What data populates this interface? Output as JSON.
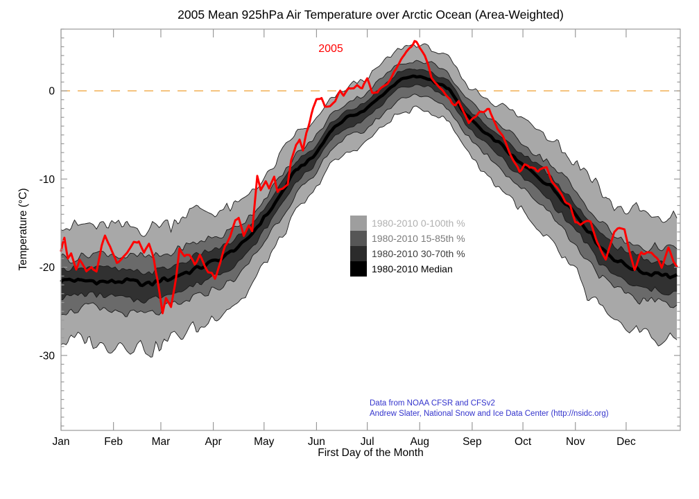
{
  "title": "2005 Mean 925hPa Air Temperature over Arctic Ocean (Area-Weighted)",
  "year_label": "2005",
  "credits": [
    "Data from NOAA CFSR and CFSv2",
    "Andrew Slater, National Snow and Ice Data Center (http://nsidc.org)"
  ],
  "legend": {
    "items": [
      {
        "label": "1980-2010 0-100th %",
        "swatch": "#9e9e9e",
        "text_color": "#b0b0b0"
      },
      {
        "label": "1980-2010 15-85th %",
        "swatch": "#565656",
        "text_color": "#7a7a7a"
      },
      {
        "label": "1980-2010 30-70th %",
        "swatch": "#2b2b2b",
        "text_color": "#3c3c3c"
      },
      {
        "label": "1980-2010 Median",
        "swatch": "#000000",
        "text_color": "#000000"
      }
    ]
  },
  "colors": {
    "line_2005": "#ff0000",
    "zero_line": "#f0a843",
    "band_outer": "#a8a8a8",
    "band_mid": "#6a6a6a",
    "band_inner": "#313131",
    "band_edge": "#1a1a1a",
    "median": "#000000",
    "frame": "#999999",
    "credit_text": "#3333cc",
    "label_text": "#000000"
  },
  "chart_data": {
    "type": "line",
    "title": "2005 Mean 925hPa Air Temperature over Arctic Ocean (Area-Weighted)",
    "xlabel": "First Day of the Month",
    "ylabel": "Temperature (°C)",
    "x_unit": "day_of_year",
    "ylim": [
      -38.5,
      7.0
    ],
    "y_ticks_major": [
      0,
      -10,
      -20,
      -30
    ],
    "y_tick_labels": [
      "0",
      "-10",
      "-20",
      "-30"
    ],
    "y_minor_step": 1,
    "grid": false,
    "zero_line": 0,
    "month_labels": [
      "Jan",
      "Feb",
      "Mar",
      "Apr",
      "May",
      "Jun",
      "Jul",
      "Aug",
      "Sep",
      "Oct",
      "Nov",
      "Dec"
    ],
    "month_start_days": [
      1,
      32,
      60,
      91,
      121,
      152,
      182,
      213,
      244,
      274,
      305,
      335
    ],
    "band_days": [
      1,
      10,
      20,
      30,
      40,
      50,
      60,
      70,
      80,
      90,
      100,
      110,
      120,
      130,
      140,
      150,
      160,
      170,
      180,
      190,
      200,
      210,
      220,
      230,
      240,
      250,
      260,
      270,
      280,
      290,
      300,
      310,
      320,
      330,
      340,
      350,
      360,
      365
    ],
    "series": [
      {
        "name": "1980-2010 0-100th %",
        "role": "band",
        "level": "outer",
        "upper": [
          -15.3,
          -15.2,
          -15.1,
          -15.2,
          -15.4,
          -15.6,
          -15.2,
          -14.6,
          -14.0,
          -13.7,
          -13.1,
          -12.1,
          -10.0,
          -7.5,
          -4.8,
          -3.8,
          -1.1,
          0.4,
          1.2,
          2.9,
          4.6,
          5.2,
          4.8,
          3.7,
          0.9,
          -0.7,
          -1.6,
          -3.0,
          -4.1,
          -5.1,
          -6.8,
          -9.0,
          -11.5,
          -13.0,
          -13.9,
          -14.3,
          -14.6,
          -14.8
        ],
        "lower": [
          -28.8,
          -28.7,
          -28.6,
          -28.7,
          -28.9,
          -29.1,
          -28.7,
          -28.1,
          -27.1,
          -26.1,
          -24.8,
          -23.0,
          -20.2,
          -17.0,
          -13.6,
          -11.8,
          -8.4,
          -6.9,
          -6.1,
          -4.4,
          -2.7,
          -2.1,
          -2.5,
          -3.6,
          -6.4,
          -8.9,
          -10.9,
          -13.2,
          -15.2,
          -17.2,
          -19.8,
          -22.5,
          -25.0,
          -26.5,
          -27.4,
          -27.8,
          -28.1,
          -28.3
        ]
      },
      {
        "name": "1980-2010 15-85th %",
        "role": "band",
        "level": "mid",
        "upper": [
          -18.8,
          -18.7,
          -18.6,
          -18.7,
          -18.9,
          -19.1,
          -18.7,
          -18.1,
          -17.4,
          -16.9,
          -16.1,
          -14.8,
          -12.5,
          -9.9,
          -7.0,
          -5.7,
          -2.8,
          -1.3,
          -0.5,
          1.2,
          2.9,
          3.5,
          3.1,
          2.0,
          -0.8,
          -2.7,
          -3.9,
          -5.5,
          -6.9,
          -8.2,
          -10.2,
          -12.5,
          -15.0,
          -16.5,
          -17.4,
          -17.8,
          -18.1,
          -18.3
        ],
        "lower": [
          -24.9,
          -24.8,
          -24.7,
          -24.8,
          -25.0,
          -25.2,
          -24.8,
          -24.2,
          -23.3,
          -22.6,
          -21.6,
          -20.1,
          -17.5,
          -14.6,
          -11.5,
          -9.9,
          -6.8,
          -5.3,
          -4.5,
          -2.8,
          -1.1,
          -0.5,
          -0.9,
          -2.0,
          -4.8,
          -7.0,
          -8.5,
          -10.5,
          -12.2,
          -13.9,
          -16.1,
          -18.6,
          -21.1,
          -22.6,
          -23.5,
          -23.9,
          -24.2,
          -24.4
        ]
      },
      {
        "name": "1980-2010 30-70th %",
        "role": "band",
        "level": "inner",
        "upper": [
          -20.2,
          -20.1,
          -20.0,
          -20.1,
          -20.3,
          -20.5,
          -20.1,
          -19.5,
          -18.7,
          -18.2,
          -17.3,
          -16.0,
          -13.6,
          -10.9,
          -8.0,
          -6.6,
          -3.7,
          -2.2,
          -1.4,
          0.3,
          2.0,
          2.6,
          2.2,
          1.1,
          -1.7,
          -3.6,
          -4.9,
          -6.7,
          -8.1,
          -9.5,
          -11.5,
          -13.9,
          -16.4,
          -17.9,
          -18.8,
          -19.2,
          -19.5,
          -19.7
        ],
        "lower": [
          -23.4,
          -23.3,
          -23.2,
          -23.3,
          -23.5,
          -23.7,
          -23.3,
          -22.7,
          -21.8,
          -21.1,
          -20.1,
          -18.6,
          -16.2,
          -13.3,
          -10.2,
          -8.7,
          -5.6,
          -4.1,
          -3.3,
          -1.6,
          0.1,
          0.7,
          0.3,
          -0.8,
          -3.6,
          -5.7,
          -7.2,
          -9.2,
          -10.8,
          -12.4,
          -14.6,
          -17.1,
          -19.6,
          -21.1,
          -22.0,
          -22.4,
          -22.7,
          -22.9
        ]
      },
      {
        "name": "1980-2010 Median",
        "role": "median",
        "values": [
          -21.6,
          -21.5,
          -21.4,
          -21.5,
          -21.7,
          -21.9,
          -21.5,
          -20.9,
          -20.1,
          -19.5,
          -18.6,
          -17.2,
          -14.8,
          -12.0,
          -9.0,
          -7.6,
          -4.6,
          -3.1,
          -2.3,
          -0.6,
          1.1,
          1.7,
          1.3,
          0.2,
          -2.6,
          -4.6,
          -6.0,
          -7.8,
          -9.3,
          -10.8,
          -12.9,
          -15.3,
          -17.8,
          -19.3,
          -20.2,
          -20.6,
          -20.9,
          -21.1
        ]
      },
      {
        "name": "2005",
        "role": "line",
        "days": [
          1,
          3,
          5,
          7,
          10,
          12,
          16,
          19,
          22,
          25,
          27,
          30,
          34,
          37,
          40,
          44,
          47,
          50,
          53,
          56,
          58,
          61,
          63,
          66,
          69,
          71,
          74,
          77,
          80,
          83,
          86,
          89,
          92,
          95,
          98,
          101,
          104,
          106,
          109,
          112,
          114,
          117,
          119,
          122,
          124,
          127,
          129,
          132,
          135,
          137,
          140,
          142,
          144,
          146,
          149,
          152,
          155,
          157,
          160,
          163,
          166,
          168,
          171,
          174,
          176,
          179,
          182,
          185,
          188,
          191,
          194,
          196,
          199,
          202,
          205,
          208,
          210,
          212,
          214,
          216,
          218,
          220,
          222,
          224,
          226,
          229,
          232,
          234,
          236,
          239,
          242,
          245,
          248,
          251,
          254,
          257,
          259,
          262,
          264,
          267,
          270,
          272,
          275,
          278,
          281,
          283,
          286,
          288,
          291,
          294,
          297,
          299,
          302,
          305,
          308,
          311,
          314,
          318,
          323,
          328,
          331,
          334,
          337,
          340,
          344,
          347,
          350,
          353,
          356,
          360,
          363,
          365
        ],
        "values": [
          -18.2,
          -16.7,
          -18.8,
          -18.2,
          -20.0,
          -19.0,
          -20.5,
          -19.8,
          -20.5,
          -17.5,
          -16.4,
          -17.6,
          -19.6,
          -19.2,
          -18.4,
          -17.2,
          -16.9,
          -18.4,
          -17.4,
          -19.2,
          -21.3,
          -25.3,
          -23.6,
          -24.6,
          -21.2,
          -17.9,
          -18.8,
          -18.4,
          -19.6,
          -18.6,
          -20.0,
          -20.7,
          -21.4,
          -19.8,
          -17.6,
          -16.5,
          -14.8,
          -14.5,
          -16.7,
          -15.5,
          -16.1,
          -9.8,
          -11.3,
          -10.3,
          -11.1,
          -9.6,
          -11.5,
          -11.0,
          -10.7,
          -8.0,
          -6.1,
          -5.5,
          -6.8,
          -4.8,
          -2.8,
          -1.0,
          -0.8,
          -1.8,
          -1.7,
          -1.1,
          0.1,
          -0.4,
          0.5,
          0.3,
          0.7,
          0.3,
          1.3,
          -0.1,
          -0.3,
          0.4,
          0.9,
          1.5,
          2.3,
          3.4,
          4.4,
          5.0,
          5.6,
          5.2,
          4.7,
          3.9,
          2.9,
          1.6,
          1.0,
          0.7,
          0.3,
          -0.4,
          -1.3,
          -1.5,
          -1.1,
          -2.5,
          -3.7,
          -3.1,
          -2.5,
          -2.2,
          -2.1,
          -3.6,
          -4.5,
          -5.0,
          -6.2,
          -7.3,
          -8.4,
          -9.1,
          -8.4,
          -8.9,
          -8.7,
          -9.2,
          -8.8,
          -8.7,
          -10.2,
          -10.9,
          -11.6,
          -12.4,
          -13.1,
          -15.0,
          -15.1,
          -14.9,
          -14.8,
          -17.0,
          -19.1,
          -15.9,
          -15.6,
          -15.6,
          -18.0,
          -20.0,
          -18.2,
          -18.3,
          -18.3,
          -19.0,
          -20.0,
          -17.9,
          -19.4,
          -20.2
        ]
      }
    ]
  }
}
